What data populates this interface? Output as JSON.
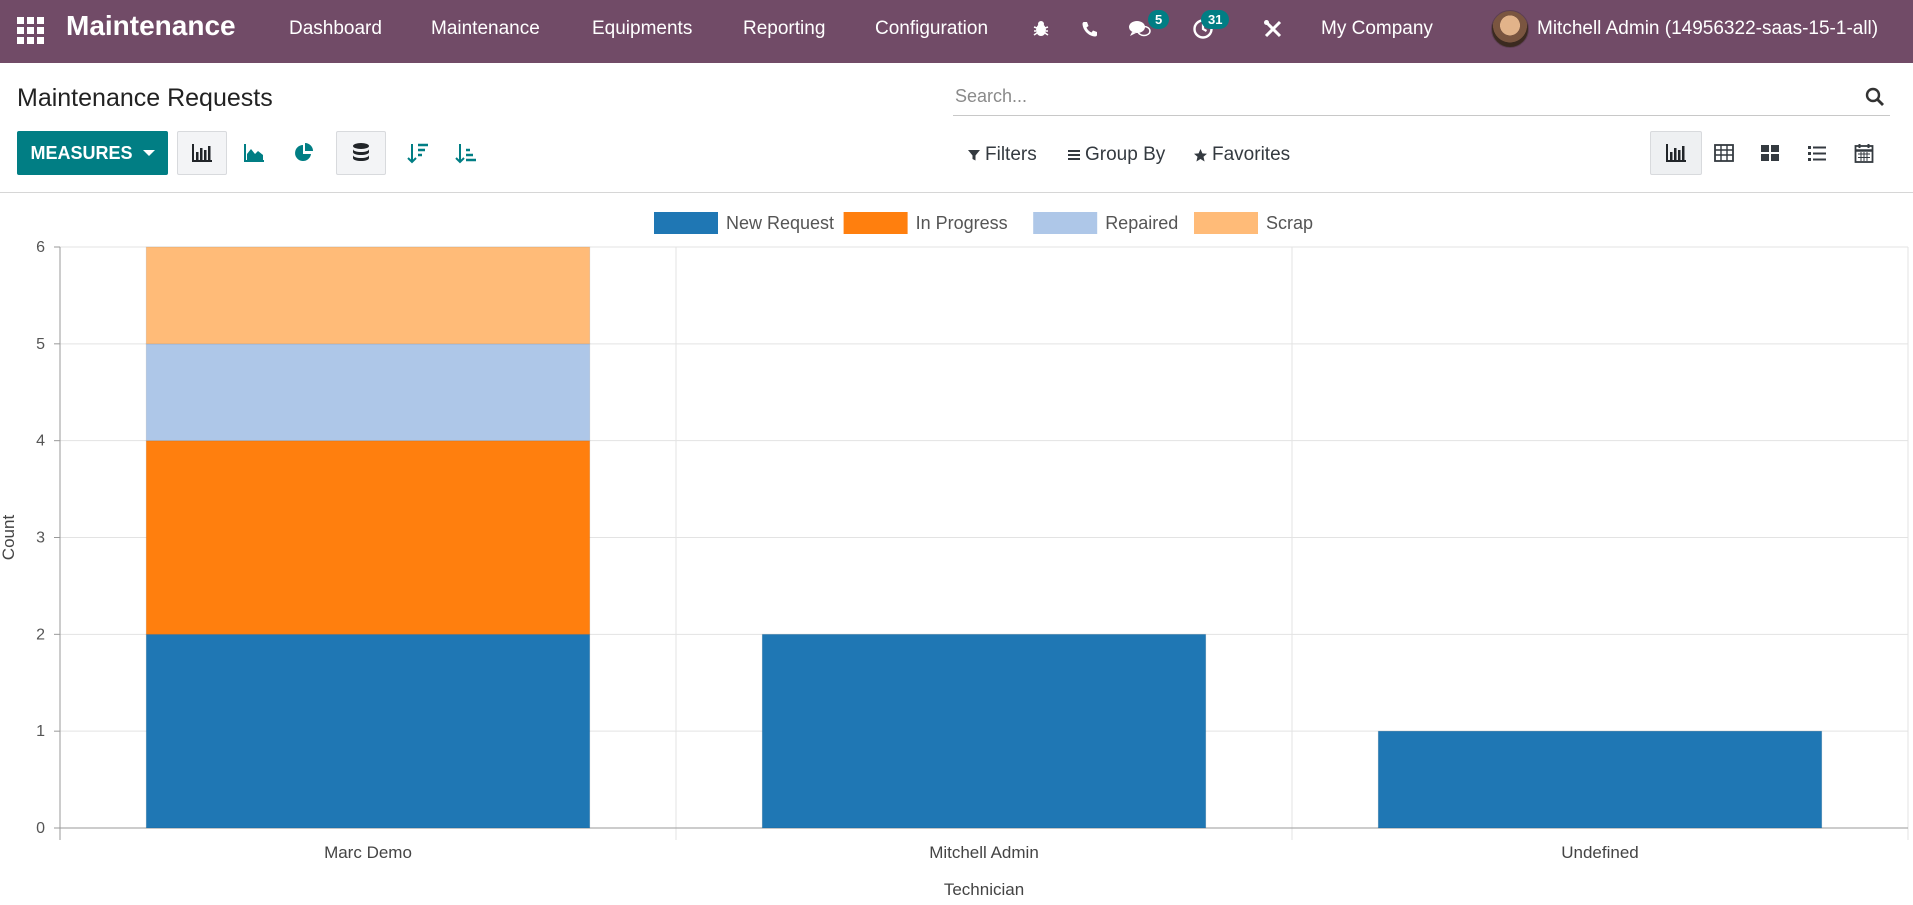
{
  "navbar": {
    "app_name": "Maintenance",
    "menu": [
      "Dashboard",
      "Maintenance",
      "Equipments",
      "Reporting",
      "Configuration"
    ],
    "messages_badge": "5",
    "activities_badge": "31",
    "company": "My Company",
    "user": "Mitchell Admin (14956322-saas-15-1-all)",
    "icons": [
      "apps-icon",
      "bug-icon",
      "phone-icon",
      "chat-icon",
      "clock-icon",
      "tools-icon"
    ]
  },
  "control": {
    "title": "Maintenance Requests",
    "search_placeholder": "Search...",
    "measures_label": "MEASURES",
    "filters_label": "Filters",
    "groupby_label": "Group By",
    "favorites_label": "Favorites"
  },
  "colors": {
    "brand": "#714B67",
    "accent": "#017e84"
  },
  "chart_data": {
    "type": "bar",
    "stacked": true,
    "categories": [
      "Marc Demo",
      "Mitchell Admin",
      "Undefined"
    ],
    "series": [
      {
        "name": "New Request",
        "color": "#1f77b4",
        "values": [
          2,
          2,
          1
        ]
      },
      {
        "name": "In Progress",
        "color": "#ff7f0e",
        "values": [
          2,
          0,
          0
        ]
      },
      {
        "name": "Repaired",
        "color": "#aec7e8",
        "values": [
          1,
          0,
          0
        ]
      },
      {
        "name": "Scrap",
        "color": "#ffbb78",
        "values": [
          1,
          0,
          0
        ]
      }
    ],
    "xlabel": "Technician",
    "ylabel": "Count",
    "ylim": [
      0,
      6
    ],
    "yticks": [
      0,
      1,
      2,
      3,
      4,
      5,
      6
    ],
    "grid": true,
    "legend": "top-center"
  }
}
